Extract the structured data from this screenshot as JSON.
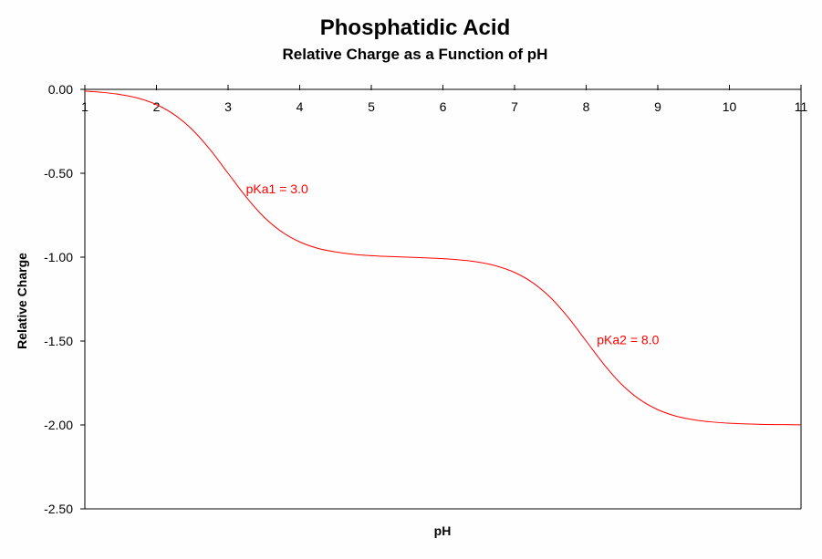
{
  "chart_data": {
    "type": "line",
    "title": "Phosphatidic Acid",
    "subtitle": "Relative Charge as a Function of pH",
    "xlabel": "pH",
    "ylabel": "Relative Charge",
    "xlim": [
      1,
      11
    ],
    "ylim": [
      -2.5,
      0
    ],
    "x_ticks": [
      "1",
      "2",
      "3",
      "4",
      "5",
      "6",
      "7",
      "8",
      "9",
      "10",
      "11"
    ],
    "y_ticks": [
      "0.00",
      "-0.50",
      "-1.00",
      "-1.50",
      "-2.00",
      "-2.50"
    ],
    "x_axis_position": "top",
    "grid": false,
    "line_color": "#ff0000",
    "x": [
      1,
      1.25,
      1.5,
      1.75,
      2,
      2.25,
      2.5,
      2.75,
      3,
      3.25,
      3.5,
      3.75,
      4,
      4.25,
      4.5,
      4.75,
      5,
      5.25,
      5.5,
      5.75,
      6,
      6.25,
      6.5,
      6.75,
      7,
      7.25,
      7.5,
      7.75,
      8,
      8.25,
      8.5,
      8.75,
      9,
      9.25,
      9.5,
      9.75,
      10,
      10.25,
      10.5,
      10.75,
      11
    ],
    "y": [
      -0.01,
      -0.018,
      -0.031,
      -0.053,
      -0.091,
      -0.151,
      -0.24,
      -0.36,
      -0.5,
      -0.64,
      -0.76,
      -0.849,
      -0.909,
      -0.947,
      -0.969,
      -0.983,
      -0.991,
      -0.996,
      -1.0,
      -1.004,
      -1.009,
      -1.017,
      -1.03,
      -1.053,
      -1.091,
      -1.151,
      -1.24,
      -1.36,
      -1.5,
      -1.64,
      -1.76,
      -1.849,
      -1.909,
      -1.947,
      -1.969,
      -1.982,
      -1.99,
      -1.994,
      -1.997,
      -1.998,
      -1.999
    ],
    "annotations": [
      {
        "text": "pKa1 = 3.0",
        "x": 3.25,
        "y": -0.62,
        "color": "#ff0000"
      },
      {
        "text": "pKa2 = 8.0",
        "x": 8.15,
        "y": -1.52,
        "color": "#ff0000"
      }
    ]
  }
}
